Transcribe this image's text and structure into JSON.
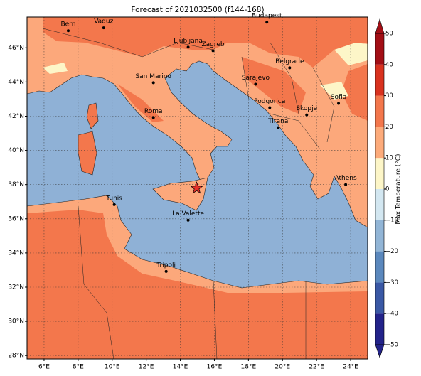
{
  "map": {
    "title": "Forecast of 2021032500 (f144-168)",
    "xlim": [
      5,
      25
    ],
    "ylim": [
      27.8,
      47.8
    ],
    "xticks": [
      {
        "value": 6,
        "label": "6°E"
      },
      {
        "value": 8,
        "label": "8°E"
      },
      {
        "value": 10,
        "label": "10°E"
      },
      {
        "value": 12,
        "label": "12°E"
      },
      {
        "value": 14,
        "label": "14°E"
      },
      {
        "value": 16,
        "label": "16°E"
      },
      {
        "value": 18,
        "label": "18°E"
      },
      {
        "value": 20,
        "label": "20°E"
      },
      {
        "value": 22,
        "label": "22°E"
      },
      {
        "value": 24,
        "label": "24°E"
      }
    ],
    "yticks": [
      {
        "value": 28,
        "label": "28°N"
      },
      {
        "value": 30,
        "label": "30°N"
      },
      {
        "value": 32,
        "label": "32°N"
      },
      {
        "value": 34,
        "label": "34°N"
      },
      {
        "value": 36,
        "label": "36°N"
      },
      {
        "value": 38,
        "label": "38°N"
      },
      {
        "value": 40,
        "label": "40°N"
      },
      {
        "value": 42,
        "label": "42°N"
      },
      {
        "value": 44,
        "label": "44°N"
      },
      {
        "value": 46,
        "label": "46°N"
      }
    ],
    "grid": true,
    "cities": [
      {
        "name": "Bern",
        "lon": 7.42,
        "lat": 47.0
      },
      {
        "name": "Vaduz",
        "lon": 9.5,
        "lat": 47.17
      },
      {
        "name": "Budapest",
        "lon": 19.08,
        "lat": 47.5
      },
      {
        "name": "Ljubljana",
        "lon": 14.46,
        "lat": 46.04
      },
      {
        "name": "Zagreb",
        "lon": 15.92,
        "lat": 45.83
      },
      {
        "name": "Belgrade",
        "lon": 20.42,
        "lat": 44.83
      },
      {
        "name": "San Marino",
        "lon": 12.42,
        "lat": 43.96
      },
      {
        "name": "Sarajevo",
        "lon": 18.42,
        "lat": 43.87
      },
      {
        "name": "Sofia",
        "lon": 23.29,
        "lat": 42.75
      },
      {
        "name": "Podgorica",
        "lon": 19.25,
        "lat": 42.5
      },
      {
        "name": "Skopje",
        "lon": 21.42,
        "lat": 42.08
      },
      {
        "name": "Roma",
        "lon": 12.42,
        "lat": 41.92
      },
      {
        "name": "Tirana",
        "lon": 19.75,
        "lat": 41.33
      },
      {
        "name": "Athens",
        "lon": 23.71,
        "lat": 38.0
      },
      {
        "name": "Tunis",
        "lon": 10.12,
        "lat": 36.83
      },
      {
        "name": "La Valette",
        "lon": 14.46,
        "lat": 35.92
      },
      {
        "name": "Tripoli",
        "lon": 13.17,
        "lat": 32.92
      }
    ],
    "star": {
      "lon": 14.96,
      "lat": 37.79,
      "color": "#e8302a"
    },
    "colorbar": {
      "label": "Max Temperature (°C)",
      "lim": [
        -50,
        50
      ],
      "ticks": [
        {
          "value": -50,
          "label": "−50"
        },
        {
          "value": -40,
          "label": "−40"
        },
        {
          "value": -30,
          "label": "−30"
        },
        {
          "value": -20,
          "label": "−20"
        },
        {
          "value": -10,
          "label": "−10"
        },
        0,
        10,
        20,
        30,
        40,
        50
      ],
      "colors": [
        "#23238a",
        "#3a58a5",
        "#5b88bd",
        "#92b5d6",
        "#d3e7f1",
        "#fdf6c8",
        "#fdab7b",
        "#f3774c",
        "#d9321f",
        "#a30f16"
      ]
    }
  }
}
